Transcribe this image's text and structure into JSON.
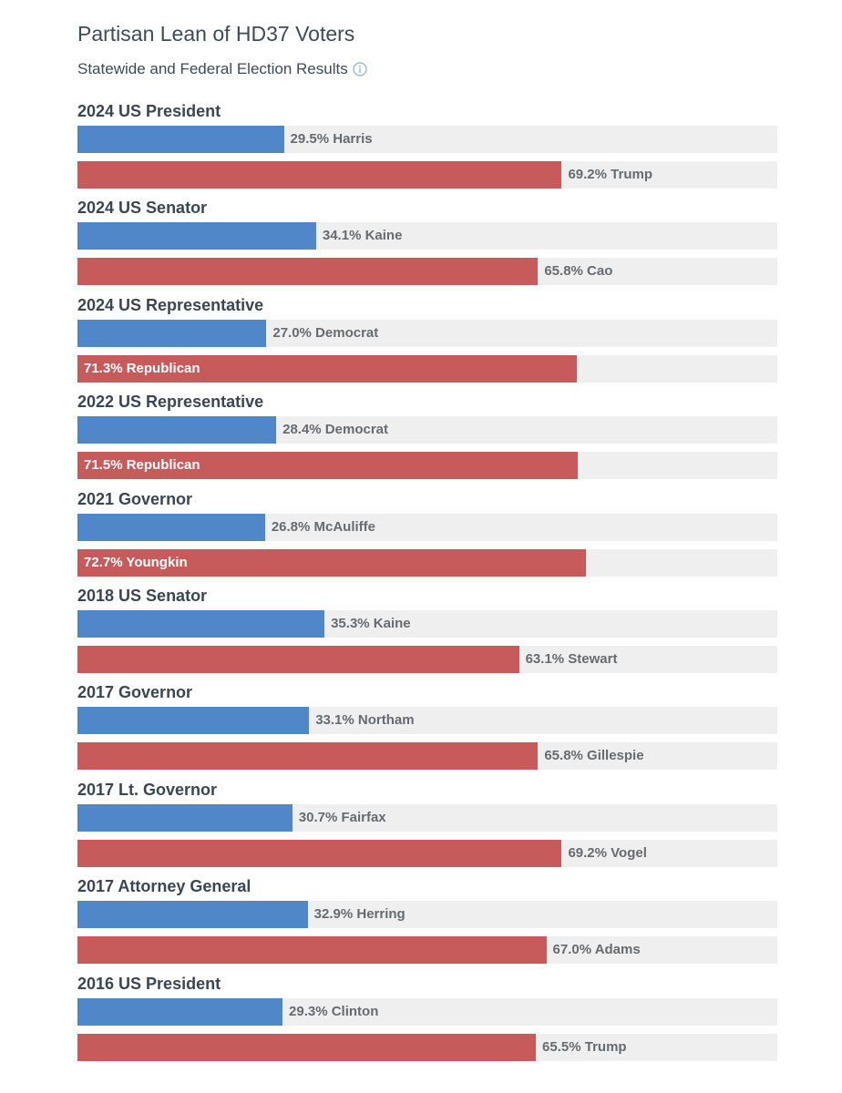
{
  "title": "Partisan Lean of HD37 Voters",
  "subtitle": "Statewide and Federal Election Results",
  "colors": {
    "democrat": "#4f87c8",
    "republican": "#c75b5b",
    "track": "#efefef",
    "info_icon": "#8ab0d6"
  },
  "icons": {
    "info": "info-circle-icon"
  },
  "chart_data": {
    "type": "bar",
    "orientation": "horizontal",
    "xlim": [
      0,
      100
    ],
    "unit": "%",
    "races": [
      {
        "title": "2024 US President",
        "dem": {
          "value": 29.5,
          "label": "29.5% Harris"
        },
        "rep": {
          "value": 69.2,
          "label": "69.2% Trump"
        }
      },
      {
        "title": "2024 US Senator",
        "dem": {
          "value": 34.1,
          "label": "34.1% Kaine"
        },
        "rep": {
          "value": 65.8,
          "label": "65.8% Cao"
        }
      },
      {
        "title": "2024 US Representative",
        "dem": {
          "value": 27.0,
          "label": "27.0% Democrat"
        },
        "rep": {
          "value": 71.3,
          "label": "71.3% Republican"
        }
      },
      {
        "title": "2022 US Representative",
        "dem": {
          "value": 28.4,
          "label": "28.4% Democrat"
        },
        "rep": {
          "value": 71.5,
          "label": "71.5% Republican"
        }
      },
      {
        "title": "2021 Governor",
        "dem": {
          "value": 26.8,
          "label": "26.8% McAuliffe"
        },
        "rep": {
          "value": 72.7,
          "label": "72.7% Youngkin"
        }
      },
      {
        "title": "2018 US Senator",
        "dem": {
          "value": 35.3,
          "label": "35.3% Kaine"
        },
        "rep": {
          "value": 63.1,
          "label": "63.1% Stewart"
        }
      },
      {
        "title": "2017 Governor",
        "dem": {
          "value": 33.1,
          "label": "33.1% Northam"
        },
        "rep": {
          "value": 65.8,
          "label": "65.8% Gillespie"
        }
      },
      {
        "title": "2017 Lt. Governor",
        "dem": {
          "value": 30.7,
          "label": "30.7% Fairfax"
        },
        "rep": {
          "value": 69.2,
          "label": "69.2% Vogel"
        }
      },
      {
        "title": "2017 Attorney General",
        "dem": {
          "value": 32.9,
          "label": "32.9% Herring"
        },
        "rep": {
          "value": 67.0,
          "label": "67.0% Adams"
        }
      },
      {
        "title": "2016 US President",
        "dem": {
          "value": 29.3,
          "label": "29.3% Clinton"
        },
        "rep": {
          "value": 65.5,
          "label": "65.5% Trump"
        }
      }
    ]
  }
}
